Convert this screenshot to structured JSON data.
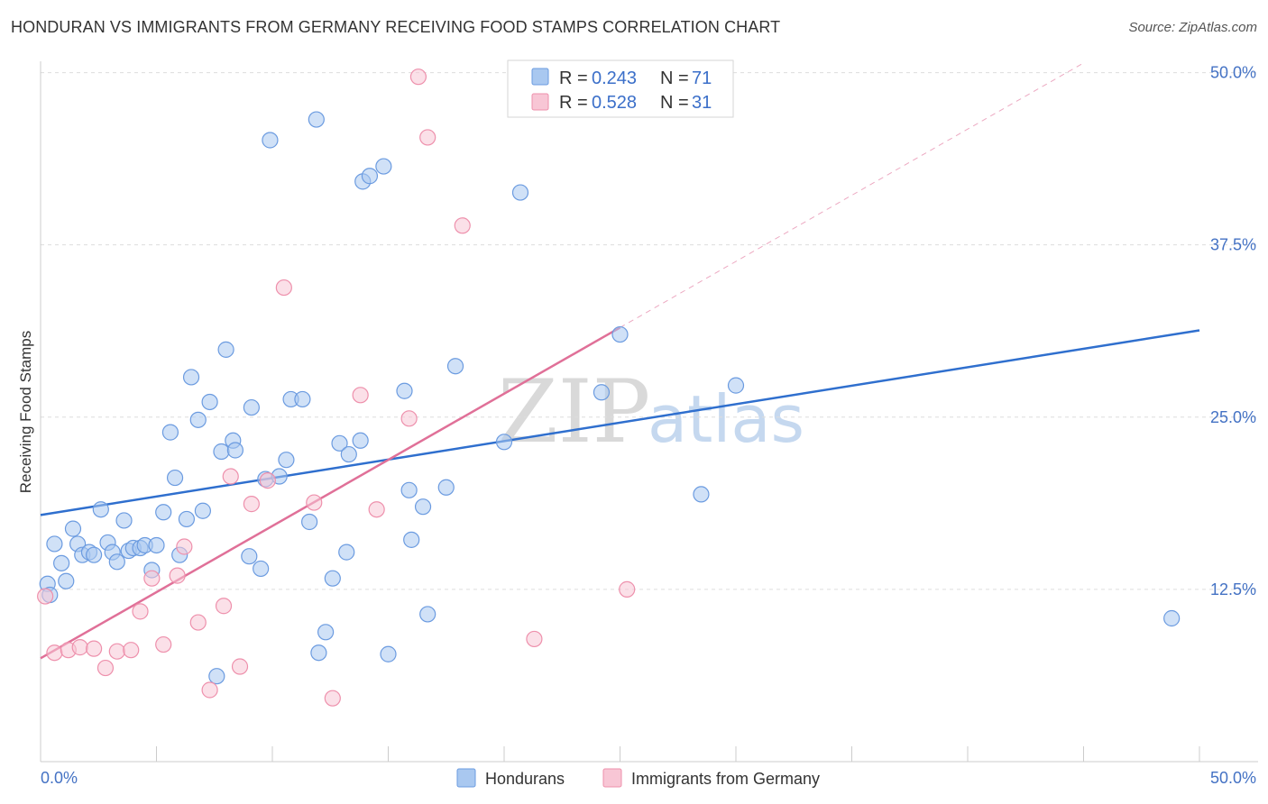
{
  "header": {
    "title": "HONDURAN VS IMMIGRANTS FROM GERMANY RECEIVING FOOD STAMPS CORRELATION CHART",
    "source": "Source: ZipAtlas.com"
  },
  "legend": {
    "rows": [
      {
        "r_label": "R = ",
        "r_value": "0.243",
        "n_label": "N = ",
        "n_value": "71"
      },
      {
        "r_label": "R = ",
        "r_value": "0.528",
        "n_label": "N = ",
        "n_value": "31"
      }
    ]
  },
  "watermark": {
    "zip": "ZIP",
    "atlas": "atlas"
  },
  "chart_data": {
    "type": "scatter",
    "ylabel": "Receiving Food Stamps",
    "xlabel": "",
    "xlim": [
      0,
      50
    ],
    "ylim": [
      0,
      52
    ],
    "x_ticks": [
      "0.0%",
      "50.0%"
    ],
    "y_ticks": [
      {
        "value": 12.5,
        "label": "12.5%"
      },
      {
        "value": 25.0,
        "label": "25.0%"
      },
      {
        "value": 37.5,
        "label": "37.5%"
      },
      {
        "value": 50.0,
        "label": "50.0%"
      }
    ],
    "grid": "horizontal dashed",
    "legend_placement": "top-center",
    "series": [
      {
        "name": "Hondurans",
        "color": "#a9c8f0",
        "stroke": "#6b9be0",
        "trend_color": "#2f6fce",
        "trend": {
          "x0": 0,
          "y0": 17.9,
          "x1": 50,
          "y1": 31.3
        },
        "points": [
          [
            0.3,
            12.9
          ],
          [
            0.4,
            12.1
          ],
          [
            0.6,
            15.8
          ],
          [
            0.9,
            14.4
          ],
          [
            1.1,
            13.1
          ],
          [
            1.4,
            16.9
          ],
          [
            1.6,
            15.8
          ],
          [
            1.8,
            15.0
          ],
          [
            2.1,
            15.2
          ],
          [
            2.3,
            15.0
          ],
          [
            2.6,
            18.3
          ],
          [
            2.9,
            15.9
          ],
          [
            3.1,
            15.2
          ],
          [
            3.3,
            14.5
          ],
          [
            3.6,
            17.5
          ],
          [
            3.8,
            15.3
          ],
          [
            4.0,
            15.5
          ],
          [
            4.3,
            15.5
          ],
          [
            4.5,
            15.7
          ],
          [
            4.8,
            13.9
          ],
          [
            5.0,
            15.7
          ],
          [
            5.3,
            18.1
          ],
          [
            5.6,
            23.9
          ],
          [
            5.8,
            20.6
          ],
          [
            6.0,
            15.0
          ],
          [
            6.3,
            17.6
          ],
          [
            6.5,
            27.9
          ],
          [
            6.8,
            24.8
          ],
          [
            7.0,
            18.2
          ],
          [
            7.3,
            26.1
          ],
          [
            7.6,
            6.2
          ],
          [
            7.8,
            22.5
          ],
          [
            8.0,
            29.9
          ],
          [
            8.3,
            23.3
          ],
          [
            8.4,
            22.6
          ],
          [
            9.1,
            25.7
          ],
          [
            9.0,
            14.9
          ],
          [
            9.5,
            14.0
          ],
          [
            9.7,
            20.5
          ],
          [
            9.9,
            45.1
          ],
          [
            10.3,
            20.7
          ],
          [
            10.6,
            21.9
          ],
          [
            10.8,
            26.3
          ],
          [
            11.3,
            26.3
          ],
          [
            11.6,
            17.4
          ],
          [
            11.9,
            46.6
          ],
          [
            12.0,
            7.9
          ],
          [
            12.3,
            9.4
          ],
          [
            12.6,
            13.3
          ],
          [
            12.9,
            23.1
          ],
          [
            13.2,
            15.2
          ],
          [
            13.3,
            22.3
          ],
          [
            13.8,
            23.3
          ],
          [
            13.9,
            42.1
          ],
          [
            14.2,
            42.5
          ],
          [
            14.8,
            43.2
          ],
          [
            15.0,
            7.8
          ],
          [
            15.7,
            26.9
          ],
          [
            15.9,
            19.7
          ],
          [
            16.0,
            16.1
          ],
          [
            16.5,
            18.5
          ],
          [
            16.7,
            10.7
          ],
          [
            17.5,
            19.9
          ],
          [
            17.9,
            28.7
          ],
          [
            20.0,
            23.2
          ],
          [
            20.7,
            41.3
          ],
          [
            24.2,
            26.8
          ],
          [
            25.0,
            31.0
          ],
          [
            28.5,
            19.4
          ],
          [
            30.0,
            27.3
          ],
          [
            48.8,
            10.4
          ]
        ]
      },
      {
        "name": "Immigrants from Germany",
        "color": "#f8c6d5",
        "stroke": "#ee90ac",
        "trend_color": "#e07098",
        "trend": {
          "x0": 0,
          "y0": 7.5,
          "x1": 25,
          "y1": 31.5
        },
        "trend_ext": {
          "x0": 25,
          "y0": 31.5,
          "x1": 45,
          "y1": 50.7
        },
        "points": [
          [
            0.2,
            12.0
          ],
          [
            0.6,
            7.9
          ],
          [
            1.2,
            8.1
          ],
          [
            1.7,
            8.3
          ],
          [
            2.3,
            8.2
          ],
          [
            2.8,
            6.8
          ],
          [
            3.3,
            8.0
          ],
          [
            3.9,
            8.1
          ],
          [
            4.3,
            10.9
          ],
          [
            4.8,
            13.3
          ],
          [
            5.3,
            8.5
          ],
          [
            5.9,
            13.5
          ],
          [
            6.2,
            15.6
          ],
          [
            6.8,
            10.1
          ],
          [
            7.3,
            5.2
          ],
          [
            7.9,
            11.3
          ],
          [
            8.2,
            20.7
          ],
          [
            8.6,
            6.9
          ],
          [
            9.1,
            18.7
          ],
          [
            9.8,
            20.4
          ],
          [
            10.5,
            34.4
          ],
          [
            11.8,
            18.8
          ],
          [
            12.6,
            4.6
          ],
          [
            13.8,
            26.6
          ],
          [
            14.5,
            18.3
          ],
          [
            15.9,
            24.9
          ],
          [
            16.3,
            49.7
          ],
          [
            16.7,
            45.3
          ],
          [
            18.2,
            38.9
          ],
          [
            21.3,
            8.9
          ],
          [
            25.3,
            12.5
          ]
        ]
      }
    ]
  }
}
